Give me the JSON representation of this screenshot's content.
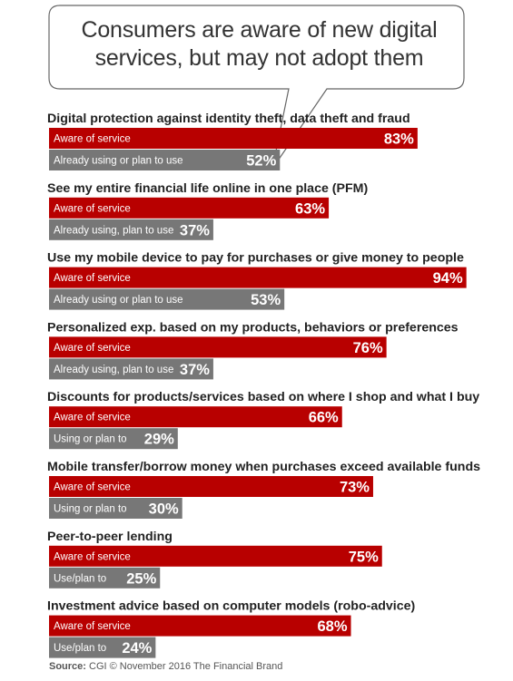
{
  "title_lines": [
    "Consumers are aware of new digital",
    "services, but may not adopt them"
  ],
  "source_label": "Source:",
  "source_text": "CGI © November 2016 The Financial Brand",
  "colors": {
    "aware": "#b80000",
    "using": "#777777",
    "text": "#222222",
    "callout_border": "#666666"
  },
  "chart_data": {
    "type": "bar",
    "orientation": "horizontal",
    "xlim": [
      0,
      100
    ],
    "grid": false,
    "value_suffix": "%",
    "categories": [
      "Digital protection against identity theft, data theft and fraud",
      "See my entire financial life online in one place (PFM)",
      "Use my mobile device to pay for purchases or give money to people",
      "Personalized exp. based on my products, behaviors or preferences",
      "Discounts for products/services based on where I shop and what I buy",
      "Mobile transfer/borrow money when purchases exceed available funds",
      "Peer-to-peer lending",
      "Investment advice based on computer models (robo-advice)"
    ],
    "series": [
      {
        "labels": [
          "Aware of service",
          "Aware of service",
          "Aware of service",
          "Aware of service",
          "Aware of service",
          "Aware of service",
          "Aware of service",
          "Aware of service"
        ],
        "values": [
          83,
          63,
          94,
          76,
          66,
          73,
          75,
          68
        ]
      },
      {
        "labels": [
          "Already using or plan to use",
          "Already using, plan to use",
          "Already using or plan to use",
          "Already using, plan to use",
          "Using or plan to",
          "Using or plan to",
          "Use/plan to",
          "Use/plan to"
        ],
        "values": [
          52,
          37,
          53,
          37,
          29,
          30,
          25,
          24
        ]
      }
    ]
  }
}
